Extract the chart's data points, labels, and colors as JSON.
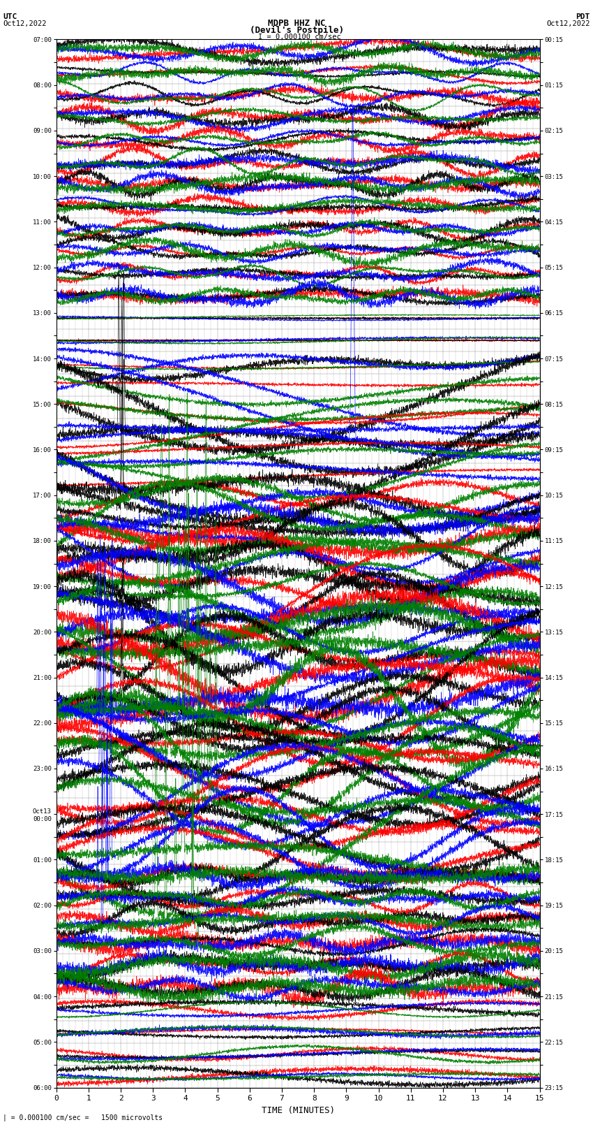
{
  "title_line1": "MDPB HHZ NC",
  "title_line2": "(Devil's Postpile)",
  "scale_bar": "I = 0.000100 cm/sec",
  "label_utc": "UTC",
  "label_pdt": "PDT",
  "date_left": "Oct12,2022",
  "date_right": "Oct12,2022",
  "xlabel": "TIME (MINUTES)",
  "footer": "= 0.000100 cm/sec =   1500 microvolts",
  "xlim": [
    0,
    15
  ],
  "xticks": [
    0,
    1,
    2,
    3,
    4,
    5,
    6,
    7,
    8,
    9,
    10,
    11,
    12,
    13,
    14,
    15
  ],
  "left_times": [
    "07:00",
    "",
    "08:00",
    "",
    "09:00",
    "",
    "10:00",
    "",
    "11:00",
    "",
    "12:00",
    "",
    "13:00",
    "",
    "14:00",
    "",
    "15:00",
    "",
    "16:00",
    "",
    "17:00",
    "",
    "18:00",
    "",
    "19:00",
    "",
    "20:00",
    "",
    "21:00",
    "",
    "22:00",
    "",
    "23:00",
    "",
    "Oct13\n00:00",
    "",
    "01:00",
    "",
    "02:00",
    "",
    "03:00",
    "",
    "04:00",
    "",
    "05:00",
    "",
    "06:00"
  ],
  "right_times": [
    "00:15",
    "",
    "01:15",
    "",
    "02:15",
    "",
    "03:15",
    "",
    "04:15",
    "",
    "05:15",
    "",
    "06:15",
    "",
    "07:15",
    "",
    "08:15",
    "",
    "09:15",
    "",
    "10:15",
    "",
    "11:15",
    "",
    "12:15",
    "",
    "13:15",
    "",
    "14:15",
    "",
    "15:15",
    "",
    "16:15",
    "",
    "17:15",
    "",
    "18:15",
    "",
    "19:15",
    "",
    "20:15",
    "",
    "21:15",
    "",
    "22:15",
    "",
    "23:15"
  ],
  "n_rows": 47,
  "bg_color": "#ffffff",
  "grid_color": "#888888",
  "line_width": 0.5
}
